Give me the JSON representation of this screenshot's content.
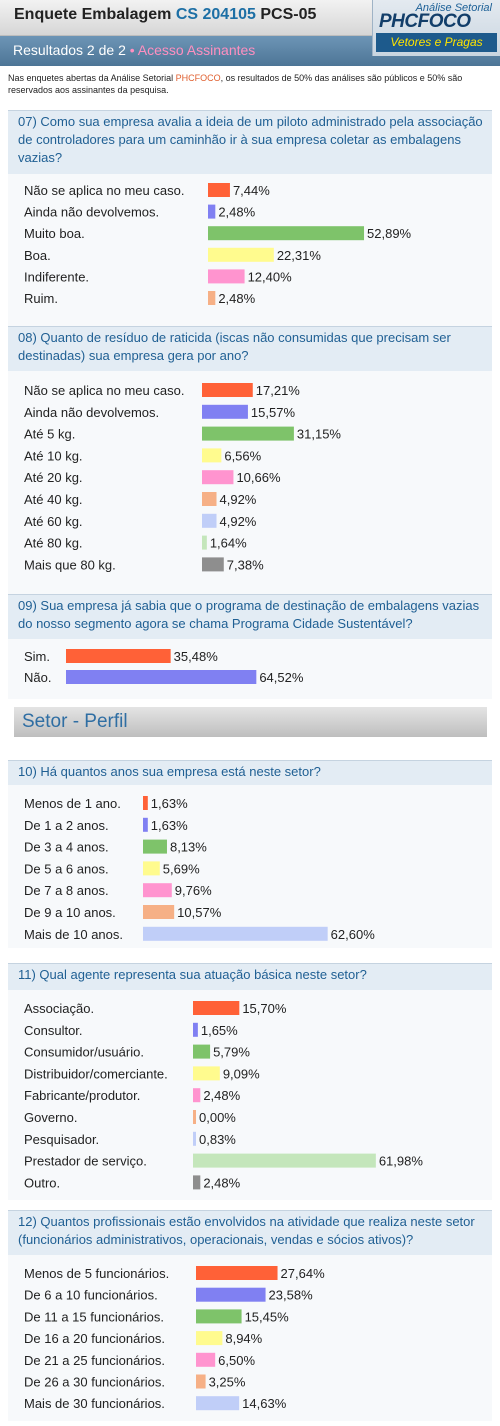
{
  "header": {
    "title": "Enquete Embalagem",
    "code": "CS 204105",
    "suffix": "PCS-05",
    "results_label": "Resultados 2 de 2",
    "bullet": "•",
    "access_label": "Acesso Assinantes"
  },
  "logo": {
    "line1": "Análise Setorial",
    "line2": "PHCFOCO",
    "line3": "Vetores e Pragas"
  },
  "intro": {
    "before": "Nas enquetes abertas da Análise Setorial ",
    "brand": "PHCFOCO",
    "after": ", os resultados de 50% das análises são públicos e 50% são reservados aos assinantes da pesquisa."
  },
  "section_perfil": "Setor - Perfil",
  "colors": {
    "red": "#ff6137",
    "blue": "#8080f2",
    "green": "#7ec36a",
    "yellow": "#fffb8e",
    "pink": "#ff94cf",
    "orange": "#f6b086",
    "lightblue": "#c0cef8",
    "pale_green": "#c4e6bb",
    "gray": "#8e8e8e"
  },
  "chart_data": [
    {
      "type": "bar",
      "question": "07) Como sua empresa avalia a ideia de um piloto administrado pela associação de controladores para um caminhão ir à sua empresa coletar as embalagens vazias?",
      "categories": [
        "Não se aplica no meu caso.",
        "Ainda não devolvemos.",
        "Muito boa.",
        "Boa.",
        "Indiferente.",
        "Ruim."
      ],
      "values": [
        7.44,
        2.48,
        52.89,
        22.31,
        12.4,
        2.48
      ],
      "labels": [
        "7,44%",
        "2,48%",
        "52,89%",
        "22,31%",
        "12,40%",
        "2,48%"
      ],
      "colors": [
        "red",
        "blue",
        "green",
        "yellow",
        "pink",
        "orange"
      ]
    },
    {
      "type": "bar",
      "question": "08) Quanto de resíduo de raticida (iscas não consumidas que precisam ser destinadas) sua empresa gera por ano?",
      "categories": [
        "Não se aplica no meu caso.",
        "Ainda não devolvemos.",
        "Até 5 kg.",
        "Até 10 kg.",
        "Até 20 kg.",
        "Até 40 kg.",
        "Até 60 kg.",
        "Até 80 kg.",
        "Mais que 80 kg."
      ],
      "values": [
        17.21,
        15.57,
        31.15,
        6.56,
        10.66,
        4.92,
        4.92,
        1.64,
        7.38
      ],
      "labels": [
        "17,21%",
        "15,57%",
        "31,15%",
        "6,56%",
        "10,66%",
        "4,92%",
        "4,92%",
        "1,64%",
        "7,38%"
      ],
      "colors": [
        "red",
        "blue",
        "green",
        "yellow",
        "pink",
        "orange",
        "lightblue",
        "pale_green",
        "gray"
      ]
    },
    {
      "type": "bar",
      "question": "09) Sua empresa já sabia que o programa de destinação de embalagens vazias do nosso segmento agora se chama Programa Cidade Sustentável?",
      "categories": [
        "Sim.",
        "Não."
      ],
      "values": [
        35.48,
        64.52
      ],
      "labels": [
        "35,48%",
        "64,52%"
      ],
      "colors": [
        "red",
        "blue"
      ]
    },
    {
      "type": "bar",
      "question": "10) Há quantos anos sua empresa está neste setor?",
      "categories": [
        "Menos de 1 ano.",
        "De 1 a 2 anos.",
        "De 3 a 4 anos.",
        "De 5 a 6 anos.",
        "De 7 a 8 anos.",
        "De 9 a 10 anos.",
        "Mais de 10 anos."
      ],
      "values": [
        1.63,
        1.63,
        8.13,
        5.69,
        9.76,
        10.57,
        62.6
      ],
      "labels": [
        "1,63%",
        "1,63%",
        "8,13%",
        "5,69%",
        "9,76%",
        "10,57%",
        "62,60%"
      ],
      "colors": [
        "red",
        "blue",
        "green",
        "yellow",
        "pink",
        "orange",
        "lightblue"
      ]
    },
    {
      "type": "bar",
      "question": "11) Qual agente representa sua atuação básica neste setor?",
      "categories": [
        "Associação.",
        "Consultor.",
        "Consumidor/usuário.",
        "Distribuidor/comerciante.",
        "Fabricante/produtor.",
        "Governo.",
        "Pesquisador.",
        "Prestador de serviço.",
        "Outro."
      ],
      "values": [
        15.7,
        1.65,
        5.79,
        9.09,
        2.48,
        0.0,
        0.83,
        61.98,
        2.48
      ],
      "labels": [
        "15,70%",
        "1,65%",
        "5,79%",
        "9,09%",
        "2,48%",
        "0,00%",
        "0,83%",
        "61,98%",
        "2,48%"
      ],
      "colors": [
        "red",
        "blue",
        "green",
        "yellow",
        "pink",
        "orange",
        "lightblue",
        "pale_green",
        "gray"
      ]
    },
    {
      "type": "bar",
      "question": "12) Quantos profissionais estão envolvidos na atividade que realiza neste setor (funcionários administrativos, operacionais, vendas e sócios ativos)?",
      "categories": [
        "Menos de 5 funcionários.",
        "De 6 a 10 funcionários.",
        "De 11 a 15 funcionários.",
        "De 16 a 20 funcionários.",
        "De 21 a 25 funcionários.",
        "De 26 a 30 funcionários.",
        "Mais de 30 funcionários."
      ],
      "values": [
        27.64,
        23.58,
        15.45,
        8.94,
        6.5,
        3.25,
        14.63
      ],
      "labels": [
        "27,64%",
        "23,58%",
        "15,45%",
        "8,94%",
        "6,50%",
        "3,25%",
        "14,63%"
      ],
      "colors": [
        "red",
        "blue",
        "green",
        "yellow",
        "pink",
        "orange",
        "lightblue"
      ]
    }
  ]
}
